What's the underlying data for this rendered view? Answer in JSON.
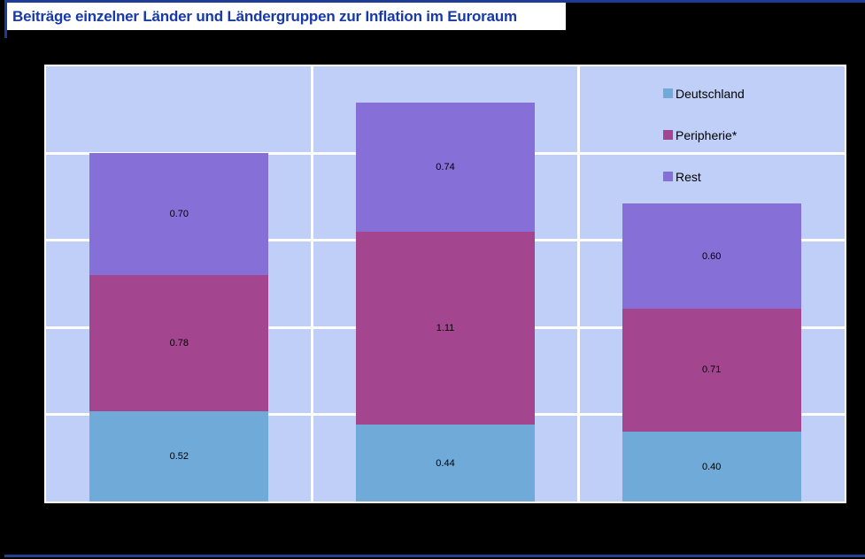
{
  "page": {
    "title": "Beiträge einzelner Länder und Ländergruppen zur Inflation im Euroraum"
  },
  "colors": {
    "background": "#000000",
    "accent_line": "#1e3c96",
    "title_text": "#1839a8",
    "plot_background": "#bfcff7",
    "gridline": "#ffffff",
    "deutschland": "#6faad8",
    "peripherie": "#a4468f",
    "rest": "#8670d8",
    "value_label_text": "#000000"
  },
  "chart_data": {
    "type": "bar",
    "stacked": true,
    "title": "Beiträge einzelner Länder und Ländergruppen zur Inflation im Euroraum",
    "categories": [
      "",
      "",
      ""
    ],
    "series": [
      {
        "name": "Deutschland",
        "color": "#6faad8",
        "values": [
          0.52,
          0.44,
          0.4
        ]
      },
      {
        "name": "Peripherie*",
        "color": "#a4468f",
        "values": [
          0.78,
          1.11,
          0.71
        ]
      },
      {
        "name": "Rest",
        "color": "#8670d8",
        "values": [
          0.7,
          0.74,
          0.6
        ]
      }
    ],
    "totals": [
      2.0,
      2.29,
      1.71
    ],
    "value_label_format": "0.00",
    "xlabel": "",
    "ylabel": "",
    "ylim": [
      0,
      2.5
    ],
    "grid_interval": 0.5,
    "grid": true,
    "axis_tick_labels_visible": false,
    "legend_position": "top-right"
  }
}
